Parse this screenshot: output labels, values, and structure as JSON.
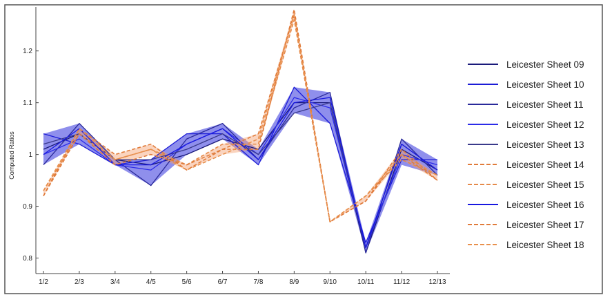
{
  "chart_data": {
    "type": "line",
    "title": "",
    "xlabel": "",
    "ylabel": "Computed Ratios",
    "categories": [
      "1/2",
      "2/3",
      "3/4",
      "4/5",
      "5/6",
      "6/7",
      "7/8",
      "8/9",
      "9/10",
      "10/11",
      "11/12",
      "12/13"
    ],
    "ylim": [
      0.77,
      1.285
    ],
    "yticks": [
      0.8,
      0.9,
      1,
      1.1,
      1.2
    ],
    "ytick_labels": [
      "0.8",
      "0.9",
      "1",
      "1.1",
      "1.2"
    ],
    "grid": false,
    "legend_position": "right",
    "series": [
      {
        "name": "Leicester Sheet 09",
        "color": "#1a1a7a",
        "dash": "solid",
        "values": [
          1.01,
          1.04,
          0.99,
          0.98,
          1.0,
          1.03,
          1.01,
          1.1,
          1.1,
          0.81,
          1.01,
          0.97
        ]
      },
      {
        "name": "Leicester Sheet 10",
        "color": "#1c1cd6",
        "dash": "solid",
        "values": [
          1.04,
          1.02,
          0.98,
          0.99,
          1.04,
          1.04,
          0.98,
          1.13,
          1.06,
          0.83,
          0.99,
          0.99
        ]
      },
      {
        "name": "Leicester Sheet 11",
        "color": "#2a2a9a",
        "dash": "solid",
        "values": [
          0.98,
          1.06,
          0.99,
          0.94,
          1.03,
          1.06,
          0.99,
          1.09,
          1.12,
          0.81,
          1.03,
          0.96
        ]
      },
      {
        "name": "Leicester Sheet 12",
        "color": "#2c2ce8",
        "dash": "solid",
        "values": [
          1.0,
          1.03,
          0.98,
          0.97,
          1.02,
          1.05,
          1.0,
          1.11,
          1.09,
          0.82,
          1.0,
          0.98
        ]
      },
      {
        "name": "Leicester Sheet 13",
        "color": "#3a3a8a",
        "dash": "solid",
        "values": [
          1.02,
          1.04,
          0.99,
          0.99,
          1.01,
          1.04,
          1.0,
          1.08,
          1.1,
          0.82,
          1.02,
          0.97
        ]
      },
      {
        "name": "Leicester Sheet 14",
        "color": "#e07b3a",
        "dash": "dashed",
        "values": [
          0.92,
          1.05,
          1.0,
          1.02,
          0.97,
          1.01,
          1.04,
          1.27,
          0.87,
          0.91,
          1.0,
          0.95
        ]
      },
      {
        "name": "Leicester Sheet 15",
        "color": "#e58a4a",
        "dash": "dashed",
        "values": [
          0.93,
          1.04,
          0.99,
          1.01,
          0.98,
          1.02,
          1.02,
          1.26,
          0.87,
          0.92,
          0.99,
          0.96
        ]
      },
      {
        "name": "Leicester Sheet 16",
        "color": "#1818e0",
        "dash": "solid",
        "values": [
          1.0,
          1.05,
          0.98,
          0.98,
          1.02,
          1.05,
          0.99,
          1.1,
          1.11,
          0.82,
          1.02,
          0.97
        ]
      },
      {
        "name": "Leicester Sheet 17",
        "color": "#e07b3a",
        "dash": "dashed",
        "values": [
          0.92,
          1.04,
          0.98,
          1.0,
          0.98,
          1.01,
          1.01,
          1.28,
          0.87,
          0.91,
          1.01,
          0.95
        ]
      },
      {
        "name": "Leicester Sheet 18",
        "color": "#e8904c",
        "dash": "dashed",
        "values": [
          0.93,
          1.05,
          0.99,
          1.01,
          0.97,
          1.0,
          1.03,
          1.27,
          0.87,
          0.92,
          1.0,
          0.96
        ]
      }
    ],
    "bands": [
      {
        "color": "#3333dd",
        "opacity": 0.55,
        "lower": [
          0.98,
          1.02,
          0.98,
          0.94,
          1.0,
          1.03,
          0.98,
          1.08,
          1.06,
          0.81,
          0.98,
          0.96
        ],
        "upper": [
          1.04,
          1.06,
          0.99,
          0.99,
          1.04,
          1.06,
          1.01,
          1.13,
          1.12,
          0.83,
          1.03,
          0.99
        ]
      },
      {
        "color": "#f4a070",
        "opacity": 0.45,
        "lower": [
          0.92,
          1.04,
          0.98,
          1.0,
          0.97,
          1.0,
          1.01,
          1.26,
          0.87,
          0.91,
          0.99,
          0.95
        ],
        "upper": [
          0.93,
          1.05,
          1.0,
          1.02,
          0.98,
          1.02,
          1.04,
          1.28,
          0.87,
          0.92,
          1.01,
          0.96
        ]
      }
    ]
  }
}
